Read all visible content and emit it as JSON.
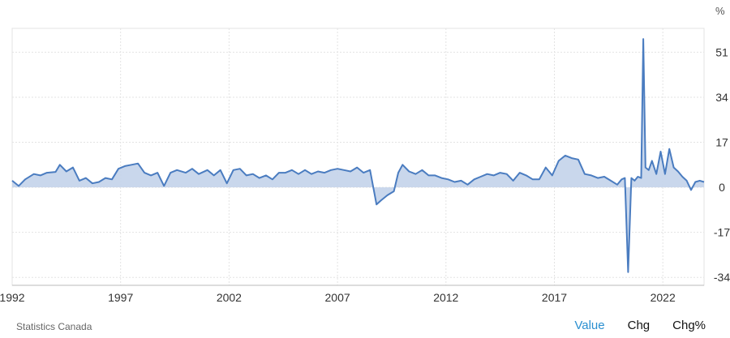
{
  "unit_label": "%",
  "source": "Statistics Canada",
  "tabs": [
    {
      "label": "Value",
      "active": true
    },
    {
      "label": "Chg",
      "active": false
    },
    {
      "label": "Chg%",
      "active": false
    }
  ],
  "colors": {
    "line": "#4a7cc0",
    "fill": "#c3d3ea",
    "grid": "#e3e3e3",
    "active_tab": "#2a8fd0"
  },
  "chart_data": {
    "type": "area",
    "x_ticks": [
      "1992",
      "1997",
      "2002",
      "2007",
      "2012",
      "2017",
      "2022"
    ],
    "y_ticks": [
      51,
      34,
      17,
      0,
      -17,
      -34
    ],
    "ylim": [
      -37,
      60
    ],
    "xlim": [
      1992.0,
      2023.9
    ],
    "grid": true,
    "series": [
      {
        "x": [
          1992.0,
          1992.3,
          1992.6,
          1993.0,
          1993.3,
          1993.6,
          1994.0,
          1994.2,
          1994.5,
          1994.8,
          1995.1,
          1995.4,
          1995.7,
          1996.0,
          1996.3,
          1996.6,
          1996.9,
          1997.2,
          1997.5,
          1997.8,
          1998.1,
          1998.4,
          1998.7,
          1999.0,
          1999.3,
          1999.6,
          2000.0,
          2000.3,
          2000.6,
          2001.0,
          2001.3,
          2001.6,
          2001.9,
          2002.2,
          2002.5,
          2002.8,
          2003.1,
          2003.4,
          2003.7,
          2004.0,
          2004.3,
          2004.6,
          2004.9,
          2005.2,
          2005.5,
          2005.8,
          2006.1,
          2006.4,
          2006.7,
          2007.0,
          2007.3,
          2007.6,
          2007.9,
          2008.2,
          2008.5,
          2008.8,
          2009.0,
          2009.3,
          2009.6,
          2009.8,
          2010.0,
          2010.3,
          2010.6,
          2010.9,
          2011.2,
          2011.5,
          2011.8,
          2012.1,
          2012.4,
          2012.7,
          2013.0,
          2013.3,
          2013.6,
          2013.9,
          2014.2,
          2014.5,
          2014.8,
          2015.1,
          2015.4,
          2015.7,
          2016.0,
          2016.3,
          2016.6,
          2016.9,
          2017.2,
          2017.5,
          2017.8,
          2018.1,
          2018.4,
          2018.7,
          2019.0,
          2019.3,
          2019.6,
          2019.9,
          2020.1,
          2020.25,
          2020.4,
          2020.55,
          2020.7,
          2020.85,
          2021.0,
          2021.1,
          2021.2,
          2021.35,
          2021.5,
          2021.7,
          2021.9,
          2022.1,
          2022.3,
          2022.5,
          2022.7,
          2022.9,
          2023.1,
          2023.3,
          2023.5,
          2023.7,
          2023.9
        ],
        "values": [
          2.5,
          0.5,
          3.0,
          5.0,
          4.5,
          5.5,
          5.8,
          8.5,
          6.0,
          7.5,
          2.5,
          3.5,
          1.5,
          2.0,
          3.5,
          3.0,
          7.0,
          8.0,
          8.5,
          9.0,
          5.5,
          4.5,
          5.5,
          0.5,
          5.5,
          6.5,
          5.5,
          7.0,
          5.0,
          6.5,
          4.5,
          6.5,
          1.5,
          6.5,
          7.0,
          4.5,
          5.0,
          3.5,
          4.5,
          3.0,
          5.5,
          5.5,
          6.5,
          5.0,
          6.5,
          5.0,
          6.0,
          5.5,
          6.5,
          7.0,
          6.5,
          6.0,
          7.5,
          5.5,
          6.5,
          -6.5,
          -5.0,
          -3.0,
          -1.5,
          5.5,
          8.5,
          6.0,
          5.0,
          6.5,
          4.5,
          4.5,
          3.5,
          3.0,
          2.0,
          2.5,
          1.0,
          3.0,
          4.0,
          5.0,
          4.5,
          5.5,
          5.0,
          2.5,
          5.5,
          4.5,
          3.0,
          3.0,
          7.5,
          4.5,
          10.0,
          12.0,
          11.0,
          10.5,
          5.0,
          4.5,
          3.5,
          4.0,
          2.5,
          1.0,
          3.0,
          3.5,
          -32.0,
          3.5,
          2.5,
          4.0,
          3.5,
          56.0,
          7.5,
          6.5,
          10.0,
          5.0,
          13.5,
          5.0,
          14.5,
          7.5,
          6.0,
          4.0,
          2.5,
          -1.0,
          2.0,
          2.5,
          2.0
        ]
      }
    ]
  }
}
